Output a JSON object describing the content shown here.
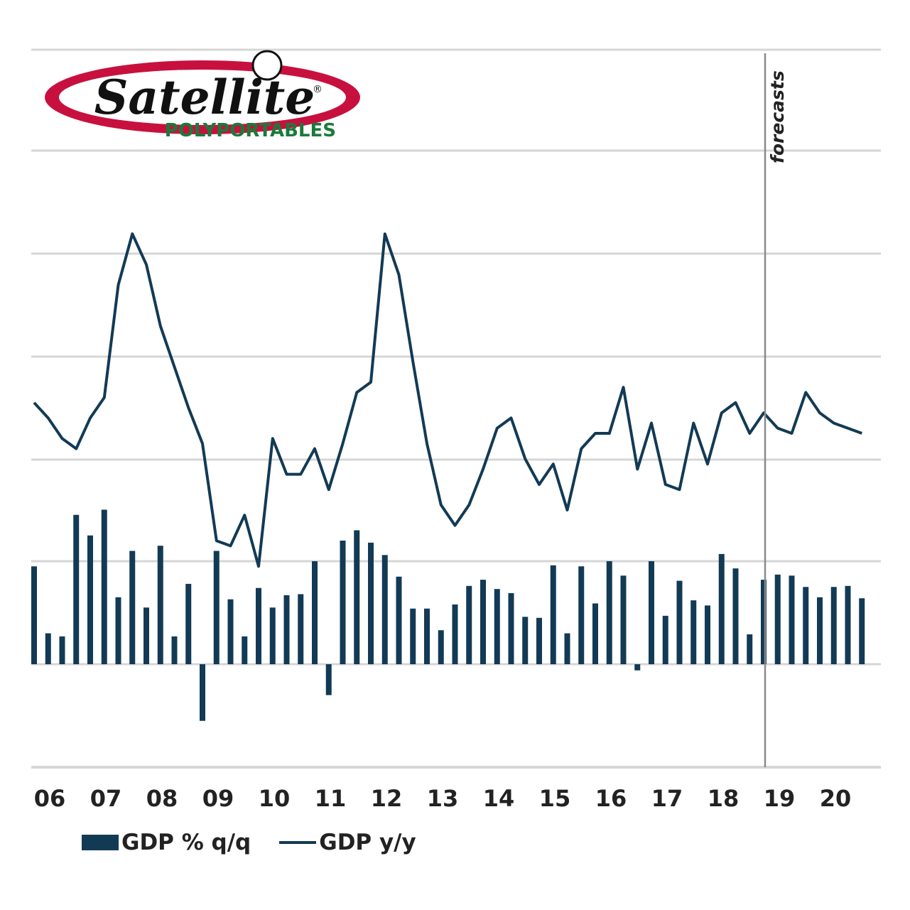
{
  "logo": {
    "brand": "Satellite",
    "registered": "®",
    "sub": "POLYPORTABLES",
    "colors": {
      "ring": "#c8103e",
      "text": "#111111",
      "sub": "#1a7a3a"
    }
  },
  "chart_data": {
    "type": "bar+line",
    "categories": [
      "06",
      "07",
      "08",
      "09",
      "10",
      "11",
      "12",
      "13",
      "14",
      "15",
      "16",
      "17",
      "18",
      "19",
      "20"
    ],
    "forecast_label": "forecasts",
    "forecast_start": 2019.0,
    "grid": true,
    "legend_position": "bottom-left",
    "colors": {
      "series": "#123a55",
      "grid": "#d6d6d6",
      "forecast_line": "#8a8a8a"
    },
    "series": [
      {
        "name": "GDP % q/q",
        "type": "bar",
        "x": [
          2006.0,
          2006.25,
          2006.5,
          2006.75,
          2007.0,
          2007.25,
          2007.5,
          2007.75,
          2008.0,
          2008.25,
          2008.5,
          2008.75,
          2009.0,
          2009.25,
          2009.5,
          2009.75,
          2010.0,
          2010.25,
          2010.5,
          2010.75,
          2011.0,
          2011.25,
          2011.5,
          2011.75,
          2012.0,
          2012.25,
          2012.5,
          2012.75,
          2013.0,
          2013.25,
          2013.5,
          2013.75,
          2014.0,
          2014.25,
          2014.5,
          2014.75,
          2015.0,
          2015.25,
          2015.5,
          2015.75,
          2016.0,
          2016.25,
          2016.5,
          2016.75,
          2017.0,
          2017.25,
          2017.5,
          2017.75,
          2018.0,
          2018.25,
          2018.5,
          2018.75,
          2019.0,
          2019.25,
          2019.5,
          2019.75,
          2020.0,
          2020.25,
          2020.5,
          2020.75
        ],
        "values": [
          0.95,
          0.3,
          0.27,
          1.45,
          1.25,
          1.5,
          0.65,
          1.1,
          0.55,
          1.15,
          0.27,
          0.78,
          -0.55,
          1.1,
          0.63,
          0.27,
          0.74,
          0.55,
          0.67,
          0.68,
          1.0,
          -0.3,
          1.2,
          1.3,
          1.18,
          1.06,
          0.85,
          0.54,
          0.54,
          0.33,
          0.58,
          0.76,
          0.82,
          0.73,
          0.69,
          0.46,
          0.45,
          0.96,
          0.3,
          0.95,
          0.59,
          1.0,
          0.86,
          -0.06,
          1.0,
          0.47,
          0.81,
          0.62,
          0.57,
          1.07,
          0.93,
          0.29,
          0.82,
          0.87,
          0.86,
          0.75,
          0.65,
          0.75,
          0.76,
          0.64
        ]
      },
      {
        "name": "GDP y/y",
        "type": "line",
        "x": [
          2006.0,
          2006.25,
          2006.5,
          2006.75,
          2007.0,
          2007.25,
          2007.5,
          2007.75,
          2008.0,
          2008.25,
          2008.5,
          2008.75,
          2009.0,
          2009.25,
          2009.5,
          2009.75,
          2010.0,
          2010.25,
          2010.5,
          2010.75,
          2011.0,
          2011.25,
          2011.5,
          2011.75,
          2012.0,
          2012.25,
          2012.5,
          2012.75,
          2013.0,
          2013.25,
          2013.5,
          2013.75,
          2014.0,
          2014.25,
          2014.5,
          2014.75,
          2015.0,
          2015.25,
          2015.5,
          2015.75,
          2016.0,
          2016.25,
          2016.5,
          2016.75,
          2017.0,
          2017.25,
          2017.5,
          2017.75,
          2018.0,
          2018.25,
          2018.5,
          2018.75,
          2019.0,
          2019.25,
          2019.5,
          2019.75,
          2020.0,
          2020.25,
          2020.5,
          2020.75
        ],
        "values": [
          3.1,
          2.8,
          2.4,
          2.2,
          2.8,
          3.2,
          5.4,
          6.4,
          5.8,
          4.6,
          3.8,
          3.0,
          2.3,
          0.4,
          0.3,
          0.9,
          -0.1,
          2.4,
          1.7,
          1.7,
          2.2,
          1.4,
          2.3,
          3.3,
          3.5,
          6.4,
          5.6,
          3.9,
          2.3,
          1.1,
          0.7,
          1.1,
          1.8,
          2.6,
          2.8,
          2.0,
          1.5,
          1.9,
          1.0,
          2.2,
          2.5,
          2.5,
          3.4,
          1.8,
          2.7,
          1.5,
          1.4,
          2.7,
          1.9,
          2.9,
          3.1,
          2.5,
          2.9,
          2.6,
          2.5,
          3.3,
          2.9,
          2.7,
          2.6,
          2.5
        ]
      }
    ]
  }
}
